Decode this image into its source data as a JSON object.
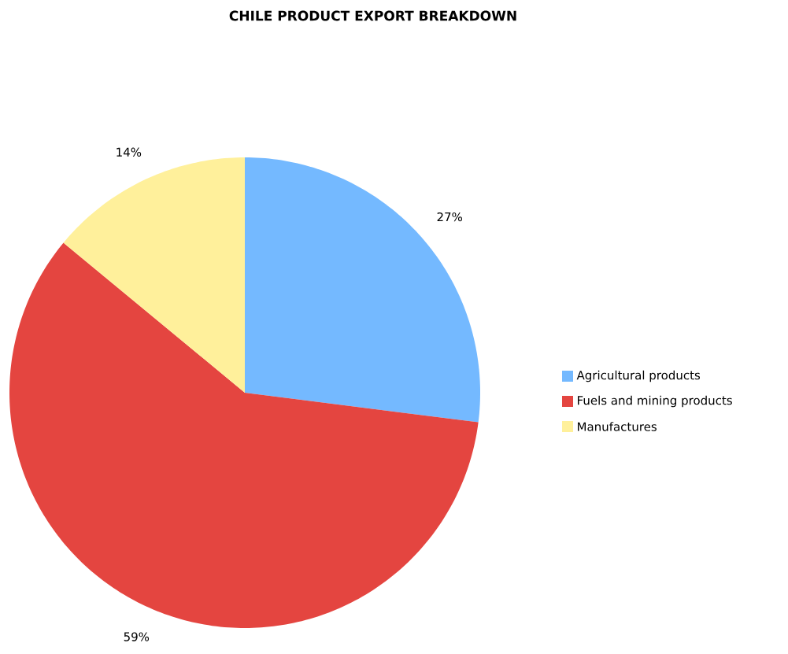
{
  "chart_data": {
    "type": "pie",
    "title": "CHILE PRODUCT EXPORT BREAKDOWN",
    "categories": [
      "Agricultural products",
      "Fuels and mining products",
      "Manufactures"
    ],
    "values": [
      27,
      59,
      14
    ],
    "colors": [
      "#74b9ff",
      "#e44540",
      "#fff09b"
    ],
    "value_labels": [
      "27%",
      "59%",
      "14%"
    ],
    "legend": "right"
  }
}
